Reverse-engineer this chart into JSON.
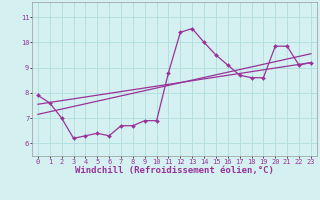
{
  "xlabel": "Windchill (Refroidissement éolien,°C)",
  "bg_color": "#d4f0f0",
  "grid_color": "#b0dede",
  "line_color": "#993399",
  "xlim": [
    -0.5,
    23.5
  ],
  "ylim": [
    5.5,
    11.6
  ],
  "xticks": [
    0,
    1,
    2,
    3,
    4,
    5,
    6,
    7,
    8,
    9,
    10,
    11,
    12,
    13,
    14,
    15,
    16,
    17,
    18,
    19,
    20,
    21,
    22,
    23
  ],
  "yticks": [
    6,
    7,
    8,
    9,
    10,
    11
  ],
  "line1_x": [
    0,
    1,
    2,
    3,
    4,
    5,
    6,
    7,
    8,
    9,
    10,
    11,
    12,
    13,
    14,
    15,
    16,
    17,
    18,
    19,
    20,
    21,
    22,
    23
  ],
  "line1_y": [
    7.9,
    7.6,
    7.0,
    6.2,
    6.3,
    6.4,
    6.3,
    6.7,
    6.7,
    6.9,
    6.9,
    8.8,
    10.4,
    10.55,
    10.0,
    9.5,
    9.1,
    8.7,
    8.6,
    8.6,
    9.85,
    9.85,
    9.1,
    9.2
  ],
  "line2_x": [
    0,
    23
  ],
  "line2_y": [
    7.55,
    9.2
  ],
  "line3_x": [
    0,
    23
  ],
  "line3_y": [
    7.15,
    9.55
  ],
  "tick_fontsize": 5.0,
  "label_fontsize": 6.5
}
